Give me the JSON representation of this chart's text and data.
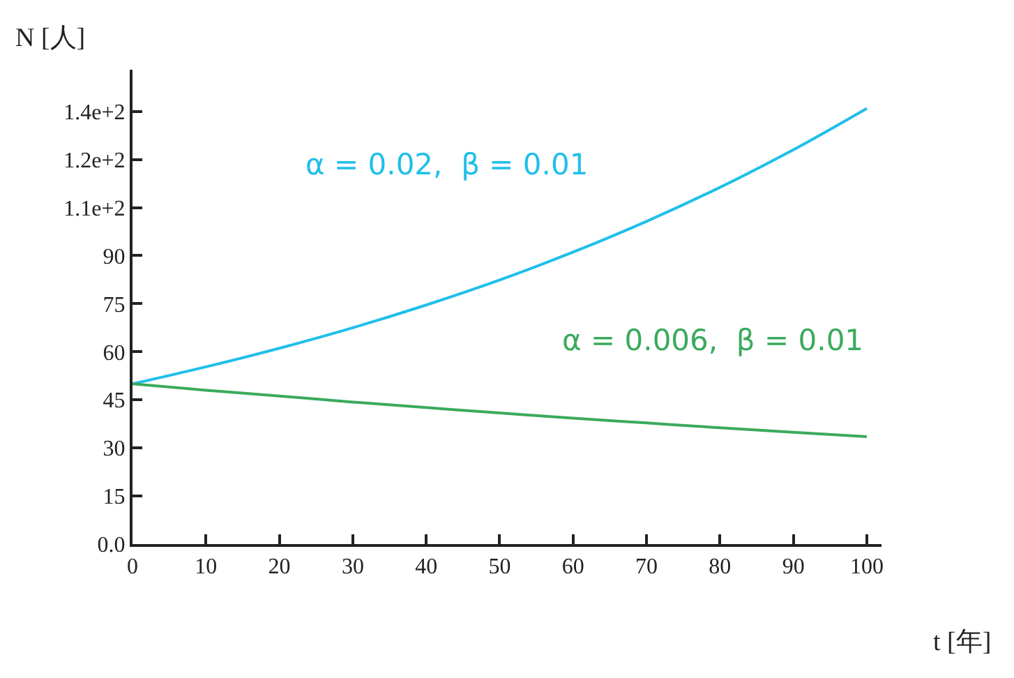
{
  "chart_data": {
    "type": "line",
    "xlabel": "t [年]",
    "ylabel": "N [人]",
    "x": [
      0,
      10,
      20,
      30,
      40,
      50,
      60,
      70,
      80,
      90,
      100
    ],
    "series": [
      {
        "name": "α = 0.02,  β = 0.01",
        "color": "#1fbfea",
        "values": [
          50,
          55.3,
          61.1,
          67.5,
          74.6,
          82.4,
          91.1,
          100.7,
          111.3,
          123.0,
          135.9
        ]
      },
      {
        "name": "α = 0.006,  β = 0.01",
        "color": "#3aaa5c",
        "values": [
          50,
          48.0,
          46.2,
          44.3,
          42.6,
          40.9,
          39.3,
          37.8,
          36.3,
          34.9,
          33.5
        ]
      }
    ],
    "xlim": [
      0,
      102
    ],
    "ylim": [
      0,
      148
    ],
    "xticks": [
      0,
      10,
      20,
      30,
      40,
      50,
      60,
      70,
      80,
      90,
      100
    ],
    "yticks": [
      {
        "value": 0,
        "label": "0.0"
      },
      15,
      30,
      45,
      60,
      75,
      90,
      {
        "value": 105,
        "label": "1.1e+2"
      },
      {
        "value": 120,
        "label": "1.2e+2"
      },
      {
        "value": 135,
        "label": "1.4e+2"
      }
    ],
    "legend": false,
    "marker": "none",
    "line_style": "solid"
  }
}
